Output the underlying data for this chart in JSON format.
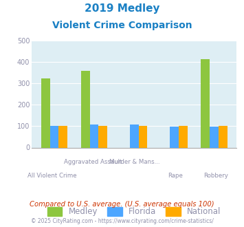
{
  "title_line1": "2019 Medley",
  "title_line2": "Violent Crime Comparison",
  "medley": [
    325,
    358,
    0,
    0,
    413
  ],
  "florida": [
    102,
    108,
    108,
    97,
    97
  ],
  "national": [
    103,
    103,
    103,
    103,
    103
  ],
  "color_medley": "#8dc63f",
  "color_florida": "#4da6ff",
  "color_national": "#ffaa00",
  "bg_color": "#deeef4",
  "title_color": "#1a80c4",
  "axis_label_color": "#9090aa",
  "footer_color": "#9090aa",
  "comparison_color": "#cc3300",
  "ylim": [
    0,
    500
  ],
  "yticks": [
    0,
    100,
    200,
    300,
    400,
    500
  ],
  "legend_labels": [
    "Medley",
    "Florida",
    "National"
  ],
  "footer_text": "Compared to U.S. average. (U.S. average equals 100)",
  "copyright_text": "© 2025 CityRating.com - https://www.cityrating.com/crime-statistics/",
  "top_labels": [
    "",
    "Aggravated Assault",
    "Murder & Mans...",
    "",
    ""
  ],
  "bottom_labels": [
    "All Violent Crime",
    "",
    "",
    "Rape",
    "Robbery"
  ]
}
